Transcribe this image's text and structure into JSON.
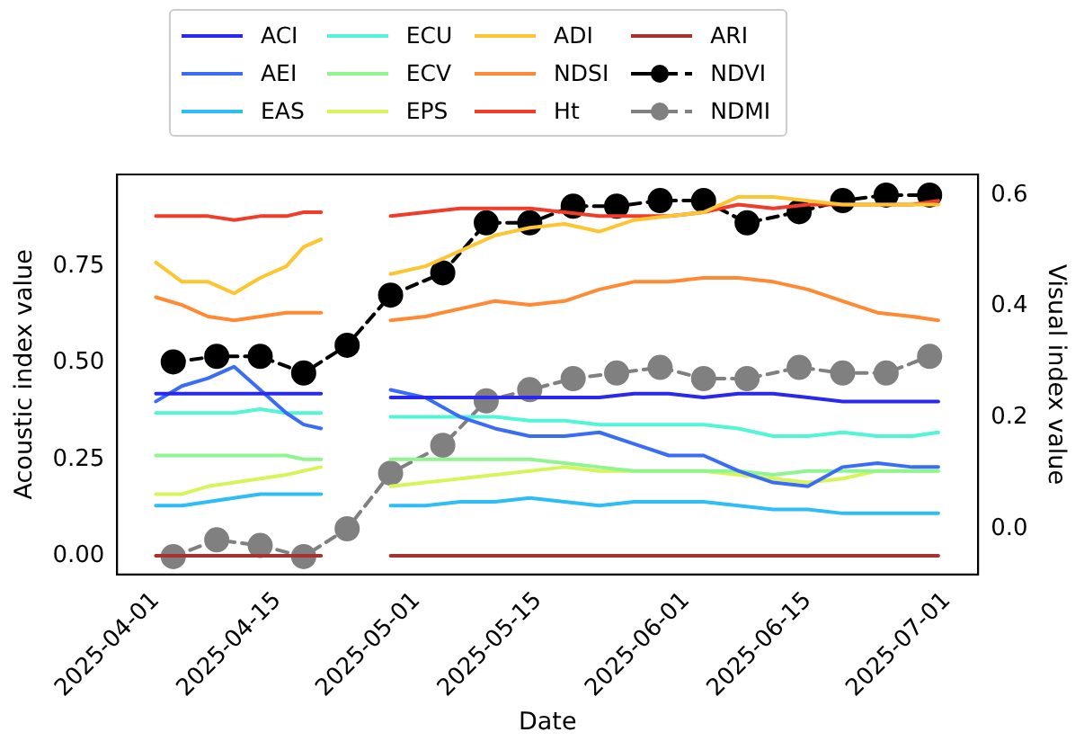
{
  "chart_data": {
    "type": "line",
    "xlabel": "Date",
    "ylabel": "Acoustic index value",
    "y2label": "Visual index value",
    "legend": "top",
    "grid": false,
    "marker": "none",
    "line_style": "solid",
    "xlim": [
      "2025-03-27T13:00",
      "2025-07-04T14:00"
    ],
    "xticks": [
      "2025-04-01",
      "2025-04-15",
      "2025-05-01",
      "2025-05-15",
      "2025-06-01",
      "2025-06-15",
      "2025-07-01"
    ],
    "ylim": [
      -0.048,
      0.988
    ],
    "yticks": [
      {
        "value": 0,
        "label": "0.00"
      },
      {
        "value": 0.25,
        "label": "0.25"
      },
      {
        "value": 0.5,
        "label": "0.50"
      },
      {
        "value": 0.75,
        "label": "0.75"
      }
    ],
    "y2lim": [
      -0.082,
      0.637
    ],
    "y2ticks": [
      {
        "value": 0,
        "label": "0.0"
      },
      {
        "value": 0.2,
        "label": "0.2"
      },
      {
        "value": 0.4,
        "label": "0.4"
      },
      {
        "value": 0.6,
        "label": "0.6"
      }
    ],
    "x": [
      "2025-04-01",
      "2025-04-04",
      "2025-04-07",
      "2025-04-10",
      "2025-04-13",
      "2025-04-16",
      "2025-04-18",
      "2025-04-20",
      "2025-04-24",
      "2025-04-28",
      "2025-05-02",
      "2025-05-06",
      "2025-05-10",
      "2025-05-14",
      "2025-05-18",
      "2025-05-22",
      "2025-05-26",
      "2025-05-30",
      "2025-06-03",
      "2025-06-07",
      "2025-06-11",
      "2025-06-15",
      "2025-06-19",
      "2025-06-23",
      "2025-06-27",
      "2025-06-30"
    ],
    "series": [
      {
        "name": "ACI",
        "color": "#2828f0",
        "values": [
          0.42,
          0.42,
          0.42,
          0.42,
          0.42,
          0.42,
          0.42,
          0.42,
          null,
          0.41,
          0.41,
          0.41,
          0.41,
          0.41,
          0.41,
          0.41,
          0.42,
          0.42,
          0.41,
          0.42,
          0.42,
          0.41,
          0.4,
          0.4,
          0.4,
          0.4
        ]
      },
      {
        "name": "AEI",
        "color": "#3a6cf5",
        "values": [
          0.4,
          0.44,
          0.46,
          0.49,
          0.43,
          0.37,
          0.34,
          0.33,
          null,
          0.43,
          0.41,
          0.36,
          0.33,
          0.31,
          0.31,
          0.32,
          0.29,
          0.26,
          0.26,
          0.22,
          0.19,
          0.18,
          0.23,
          0.24,
          0.23,
          0.23
        ]
      },
      {
        "name": "EAS",
        "color": "#2fbdf5",
        "values": [
          0.13,
          0.13,
          0.14,
          0.15,
          0.16,
          0.16,
          0.16,
          0.16,
          null,
          0.13,
          0.13,
          0.14,
          0.14,
          0.15,
          0.14,
          0.13,
          0.14,
          0.14,
          0.14,
          0.13,
          0.12,
          0.12,
          0.11,
          0.11,
          0.11,
          0.11
        ]
      },
      {
        "name": "ECU",
        "color": "#52f5d6",
        "values": [
          0.37,
          0.37,
          0.37,
          0.37,
          0.38,
          0.37,
          0.37,
          0.37,
          null,
          0.36,
          0.36,
          0.36,
          0.36,
          0.35,
          0.35,
          0.34,
          0.34,
          0.34,
          0.34,
          0.33,
          0.31,
          0.31,
          0.32,
          0.31,
          0.31,
          0.32
        ]
      },
      {
        "name": "ECV",
        "color": "#90f590",
        "values": [
          0.26,
          0.26,
          0.26,
          0.26,
          0.26,
          0.26,
          0.25,
          0.25,
          null,
          0.25,
          0.25,
          0.25,
          0.25,
          0.25,
          0.24,
          0.23,
          0.22,
          0.22,
          0.22,
          0.22,
          0.21,
          0.22,
          0.22,
          0.22,
          0.22,
          0.22
        ]
      },
      {
        "name": "EPS",
        "color": "#d5f55a",
        "values": [
          0.16,
          0.16,
          0.18,
          0.19,
          0.2,
          0.21,
          0.22,
          0.23,
          null,
          0.18,
          0.19,
          0.2,
          0.21,
          0.22,
          0.23,
          0.22,
          0.22,
          0.22,
          0.22,
          0.21,
          0.2,
          0.19,
          0.2,
          0.22,
          0.22,
          0.22
        ]
      },
      {
        "name": "ADI",
        "color": "#fdc531",
        "values": [
          0.76,
          0.71,
          0.71,
          0.68,
          0.72,
          0.75,
          0.8,
          0.82,
          null,
          0.73,
          0.75,
          0.79,
          0.83,
          0.85,
          0.86,
          0.84,
          0.87,
          0.88,
          0.89,
          0.93,
          0.93,
          0.92,
          0.91,
          0.91,
          0.91,
          0.91
        ]
      },
      {
        "name": "NDSI",
        "color": "#ff8a33",
        "values": [
          0.67,
          0.65,
          0.62,
          0.61,
          0.62,
          0.63,
          0.63,
          0.63,
          null,
          0.61,
          0.62,
          0.64,
          0.66,
          0.65,
          0.66,
          0.69,
          0.71,
          0.71,
          0.72,
          0.72,
          0.71,
          0.69,
          0.66,
          0.63,
          0.62,
          0.61
        ]
      },
      {
        "name": "Ht",
        "color": "#f03c2a",
        "values": [
          0.88,
          0.88,
          0.88,
          0.87,
          0.88,
          0.88,
          0.89,
          0.89,
          null,
          0.88,
          0.89,
          0.9,
          0.9,
          0.9,
          0.89,
          0.88,
          0.88,
          0.88,
          0.89,
          0.91,
          0.9,
          0.91,
          0.91,
          0.91,
          0.91,
          0.92
        ]
      },
      {
        "name": "ARI",
        "color": "#a83232",
        "values": [
          0,
          0,
          0,
          0,
          0,
          0,
          0,
          0,
          null,
          0,
          0,
          0,
          0,
          0,
          0,
          0,
          0,
          0,
          0,
          0,
          0,
          0,
          0,
          0,
          0,
          0
        ]
      },
      {
        "name": "NDVI",
        "color": "#000000",
        "axis": "y2",
        "marker": "circle",
        "line_style": "dashed",
        "x": [
          "2025-04-03",
          "2025-04-08",
          "2025-04-13",
          "2025-04-18",
          "2025-04-23",
          "2025-04-28",
          "2025-05-04",
          "2025-05-09",
          "2025-05-14",
          "2025-05-19",
          "2025-05-24",
          "2025-05-29",
          "2025-06-03",
          "2025-06-08",
          "2025-06-14",
          "2025-06-19",
          "2025-06-24",
          "2025-06-29"
        ],
        "values": [
          0.3,
          0.31,
          0.31,
          0.28,
          0.33,
          0.42,
          0.46,
          0.55,
          0.55,
          0.58,
          0.58,
          0.59,
          0.59,
          0.55,
          0.57,
          0.59,
          0.6,
          0.6
        ]
      },
      {
        "name": "NDMI",
        "color": "#808080",
        "axis": "y2",
        "marker": "circle",
        "line_style": "dashed",
        "x": [
          "2025-04-03",
          "2025-04-08",
          "2025-04-13",
          "2025-04-18",
          "2025-04-23",
          "2025-04-28",
          "2025-05-04",
          "2025-05-09",
          "2025-05-14",
          "2025-05-19",
          "2025-05-24",
          "2025-05-29",
          "2025-06-03",
          "2025-06-08",
          "2025-06-14",
          "2025-06-19",
          "2025-06-24",
          "2025-06-29"
        ],
        "values": [
          -0.05,
          -0.02,
          -0.03,
          -0.05,
          0.0,
          0.1,
          0.15,
          0.23,
          0.25,
          0.27,
          0.28,
          0.29,
          0.27,
          0.27,
          0.29,
          0.28,
          0.28,
          0.31
        ]
      }
    ]
  }
}
